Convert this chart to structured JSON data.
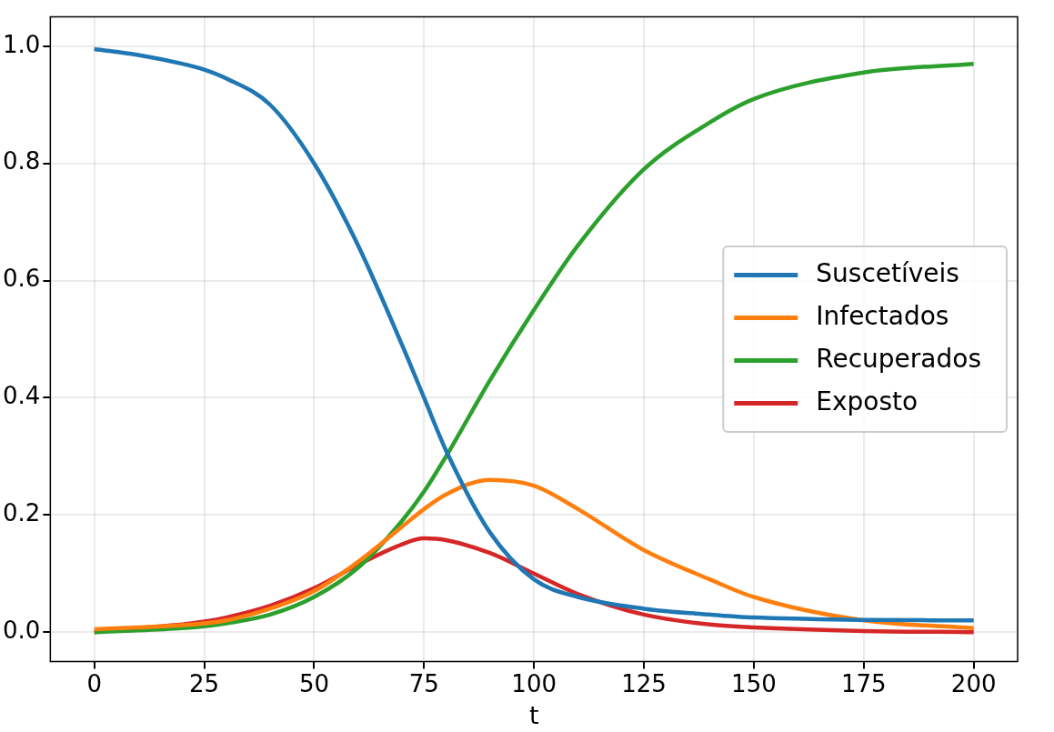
{
  "chart_data": {
    "type": "line",
    "xlabel": "t",
    "x": [
      0,
      10,
      20,
      25,
      30,
      40,
      50,
      60,
      70,
      75,
      80,
      90,
      100,
      110,
      125,
      140,
      150,
      175,
      200
    ],
    "series": [
      {
        "name": "Suscetíveis",
        "color": "#1f77b4",
        "values": [
          0.995,
          0.985,
          0.97,
          0.96,
          0.945,
          0.9,
          0.8,
          0.66,
          0.49,
          0.4,
          0.31,
          0.17,
          0.09,
          0.06,
          0.04,
          0.03,
          0.025,
          0.021,
          0.02
        ]
      },
      {
        "name": "Infectados",
        "color": "#ff7f0e",
        "values": [
          0.005,
          0.008,
          0.012,
          0.015,
          0.02,
          0.04,
          0.07,
          0.12,
          0.18,
          0.21,
          0.235,
          0.26,
          0.25,
          0.21,
          0.14,
          0.09,
          0.06,
          0.02,
          0.007
        ]
      },
      {
        "name": "Recuperados",
        "color": "#2ca02c",
        "values": [
          0,
          0.003,
          0.007,
          0.01,
          0.015,
          0.03,
          0.06,
          0.11,
          0.19,
          0.24,
          0.3,
          0.43,
          0.55,
          0.66,
          0.79,
          0.87,
          0.91,
          0.955,
          0.97
        ]
      },
      {
        "name": "Exposto",
        "color": "#d62728",
        "values": [
          0,
          0.007,
          0.013,
          0.018,
          0.025,
          0.045,
          0.075,
          0.115,
          0.15,
          0.16,
          0.157,
          0.135,
          0.1,
          0.065,
          0.03,
          0.013,
          0.008,
          0.002,
          0
        ]
      }
    ],
    "xlim": [
      -10,
      210
    ],
    "ylim": [
      -0.05,
      1.05
    ],
    "xticks": [
      0,
      25,
      50,
      75,
      100,
      125,
      150,
      175,
      200
    ],
    "yticks": [
      {
        "value": 0,
        "label": "0.0"
      },
      {
        "value": 0.2,
        "label": "0.2"
      },
      {
        "value": 0.4,
        "label": "0.4"
      },
      {
        "value": 0.6,
        "label": "0.6"
      },
      {
        "value": 0.8,
        "label": "0.8"
      },
      {
        "value": 1,
        "label": "1.0"
      }
    ],
    "grid": true,
    "legend": "right",
    "marker": "none",
    "line_style": "solid"
  }
}
